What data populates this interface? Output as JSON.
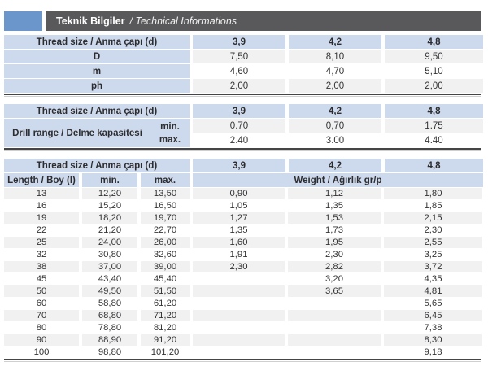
{
  "title": {
    "main": "Teknik Bilgiler",
    "secondary": "/ Technical Informations"
  },
  "colors": {
    "accent_blue": "#6a96cc",
    "bar_dark": "#59595b",
    "header_blue": "#cdd9ec",
    "stripe_gray": "#f1f1f2",
    "rule_dark": "#454548"
  },
  "table1": {
    "header": [
      "Thread size / Anma çapı (d)",
      "3,9",
      "4,2",
      "4,8"
    ],
    "rows": [
      {
        "cells": [
          "D",
          "7,50",
          "8,10",
          "9,50"
        ]
      },
      {
        "cells": [
          "m",
          "4,60",
          "4,70",
          "5,10"
        ]
      },
      {
        "cells": [
          "ph",
          "2,00",
          "2,00",
          "2,00"
        ]
      }
    ]
  },
  "table2": {
    "header": [
      "Thread size / Anma çapı (d)",
      "3,9",
      "4,2",
      "4,8"
    ],
    "row_label": "Drill range / Delme kapasitesi",
    "sub_rows": [
      {
        "cells": [
          "min.",
          "0.70",
          "0,70",
          "1.75"
        ]
      },
      {
        "cells": [
          "max.",
          "2.40",
          "3.00",
          "4.40"
        ]
      }
    ]
  },
  "table3": {
    "header": [
      "Thread size / Anma çapı (d)",
      "3,9",
      "4,2",
      "4,8"
    ],
    "subheader": [
      "Length / Boy (I)",
      "min.",
      "max.",
      "Weight / Ağırlık gr/p"
    ],
    "rows": [
      {
        "cells": [
          "13",
          "12,20",
          "13,50",
          "0,90",
          "1,12",
          "1,80"
        ]
      },
      {
        "cells": [
          "16",
          "15,20",
          "16,50",
          "1,05",
          "1,35",
          "1,85"
        ]
      },
      {
        "cells": [
          "19",
          "18,20",
          "19,70",
          "1,27",
          "1,53",
          "2,15"
        ]
      },
      {
        "cells": [
          "22",
          "21,20",
          "22,70",
          "1,35",
          "1,73",
          "2,30"
        ]
      },
      {
        "cells": [
          "25",
          "24,00",
          "26,00",
          "1,60",
          "1,95",
          "2,55"
        ]
      },
      {
        "cells": [
          "32",
          "30,80",
          "32,60",
          "1,91",
          "2,30",
          "3,25"
        ]
      },
      {
        "cells": [
          "38",
          "37,00",
          "39,00",
          "2,30",
          "2,82",
          "3,72"
        ]
      },
      {
        "cells": [
          "45",
          "43,40",
          "45,40",
          "",
          "3,20",
          "4,35"
        ]
      },
      {
        "cells": [
          "50",
          "49,50",
          "51,50",
          "",
          "3,65",
          "4,81"
        ]
      },
      {
        "cells": [
          "60",
          "58,80",
          "61,20",
          "",
          "",
          "5,65"
        ]
      },
      {
        "cells": [
          "70",
          "68,80",
          "71,20",
          "",
          "",
          "6,45"
        ]
      },
      {
        "cells": [
          "80",
          "78,80",
          "81,20",
          "",
          "",
          "7,38"
        ]
      },
      {
        "cells": [
          "90",
          "88,90",
          "91,20",
          "",
          "",
          "8,30"
        ]
      },
      {
        "cells": [
          "100",
          "98,80",
          "101,20",
          "",
          "",
          "9,18"
        ]
      }
    ]
  }
}
